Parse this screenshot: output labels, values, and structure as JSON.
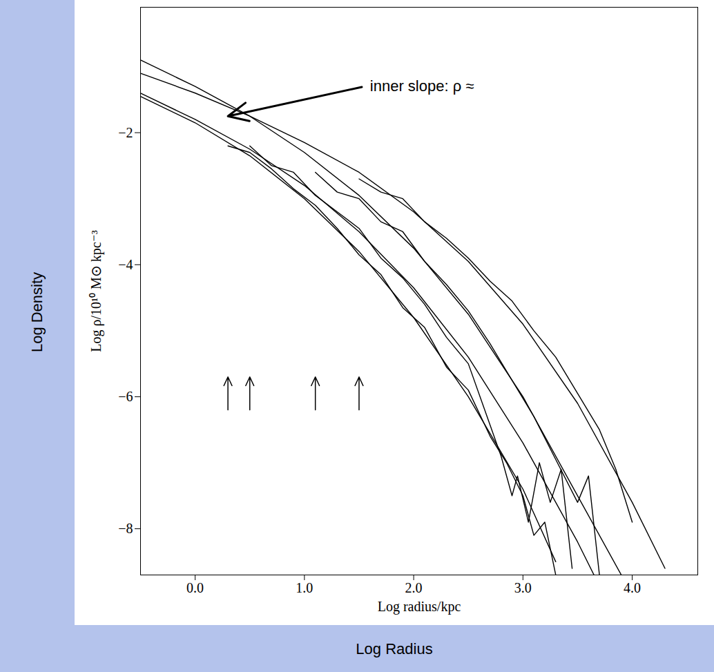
{
  "chart_data": {
    "type": "line",
    "outer_labels": {
      "y": "Log Density",
      "x": "Log Radius"
    },
    "x_label": "Log radius/kpc",
    "y_label": "Log ρ/10¹⁰ M⊙ kpc⁻³",
    "xlim": [
      -0.5,
      4.6
    ],
    "ylim": [
      -8.7,
      -0.1
    ],
    "xticks": [
      0,
      1,
      2,
      3,
      4
    ],
    "yticks": [
      -8,
      -6,
      -4,
      -2
    ],
    "grid": false,
    "annotation": {
      "text": "inner slope: ρ ≈",
      "x": 1.6,
      "y": -1.3,
      "arrow_to": [
        0.3,
        -1.75
      ]
    },
    "arrows": {
      "x": [
        0.3,
        0.5,
        1.1,
        1.5
      ],
      "y_from": -6.2,
      "y_to": -5.7
    },
    "series": [
      {
        "color": "#000000",
        "line_style": "solid",
        "x": [
          -0.5,
          0,
          0.5,
          1,
          1.5,
          2,
          2.5,
          3,
          3.3
        ],
        "values": [
          -1.45,
          -1.85,
          -2.35,
          -3.0,
          -3.8,
          -4.8,
          -6.0,
          -7.4,
          -8.5
        ]
      },
      {
        "color": "#000000",
        "line_style": "solid",
        "x": [
          -0.5,
          0,
          0.5,
          1,
          1.5,
          2,
          2.5,
          3,
          3.5,
          3.65
        ],
        "values": [
          -1.4,
          -1.8,
          -2.25,
          -2.8,
          -3.5,
          -4.35,
          -5.4,
          -6.7,
          -8.2,
          -8.7
        ]
      },
      {
        "color": "#000000",
        "line_style": "solid",
        "x": [
          -0.5,
          0,
          0.5,
          1,
          1.5,
          2,
          2.5,
          3,
          3.5,
          3.9
        ],
        "values": [
          -0.9,
          -1.3,
          -1.75,
          -2.3,
          -2.95,
          -3.75,
          -4.75,
          -6.0,
          -7.5,
          -8.7
        ]
      },
      {
        "color": "#000000",
        "line_style": "solid",
        "x": [
          -0.5,
          0,
          0.5,
          1,
          1.5,
          2,
          2.5,
          3,
          3.5,
          4,
          4.3
        ],
        "values": [
          -1.1,
          -1.4,
          -1.75,
          -2.15,
          -2.6,
          -3.2,
          -3.95,
          -4.9,
          -6.1,
          -7.6,
          -8.6
        ]
      },
      {
        "color": "#000000",
        "line_style": "solid",
        "x": [
          0.3,
          0.5,
          0.7,
          0.9,
          1.1,
          1.3,
          1.5,
          1.7,
          1.9,
          2.1,
          2.3,
          2.5,
          2.7,
          2.85,
          3.0,
          3.1,
          3.2,
          3.3
        ],
        "values": [
          -2.2,
          -2.3,
          -2.55,
          -2.85,
          -3.1,
          -3.45,
          -3.85,
          -4.15,
          -4.65,
          -4.95,
          -5.55,
          -5.9,
          -6.6,
          -7.0,
          -7.5,
          -8.1,
          -7.9,
          -8.7
        ]
      },
      {
        "color": "#000000",
        "line_style": "solid",
        "x": [
          0.5,
          0.7,
          0.9,
          1.1,
          1.3,
          1.5,
          1.7,
          1.9,
          2.1,
          2.3,
          2.5,
          2.65,
          2.8,
          2.9,
          2.95,
          3.05,
          3.15,
          3.25,
          3.35,
          3.45
        ],
        "values": [
          -2.2,
          -2.5,
          -2.6,
          -2.95,
          -3.2,
          -3.45,
          -3.9,
          -4.2,
          -4.6,
          -5.1,
          -5.5,
          -6.2,
          -6.9,
          -7.5,
          -7.2,
          -7.9,
          -7.0,
          -7.6,
          -7.1,
          -8.6
        ]
      },
      {
        "color": "#000000",
        "line_style": "solid",
        "x": [
          1.1,
          1.3,
          1.5,
          1.7,
          1.9,
          2.1,
          2.3,
          2.5,
          2.7,
          2.9,
          3.1,
          3.3,
          3.5,
          3.6,
          3.7
        ],
        "values": [
          -2.6,
          -2.9,
          -3.0,
          -3.35,
          -3.5,
          -3.95,
          -4.3,
          -4.7,
          -5.2,
          -5.75,
          -6.3,
          -6.95,
          -7.6,
          -7.2,
          -8.7
        ]
      },
      {
        "color": "#000000",
        "line_style": "solid",
        "x": [
          1.5,
          1.7,
          1.9,
          2.1,
          2.3,
          2.5,
          2.7,
          2.9,
          3.1,
          3.3,
          3.5,
          3.7,
          3.85,
          4.0
        ],
        "values": [
          -2.7,
          -2.9,
          -3.0,
          -3.35,
          -3.6,
          -3.9,
          -4.25,
          -4.55,
          -5.0,
          -5.4,
          -5.95,
          -6.5,
          -7.1,
          -7.9
        ]
      }
    ]
  }
}
